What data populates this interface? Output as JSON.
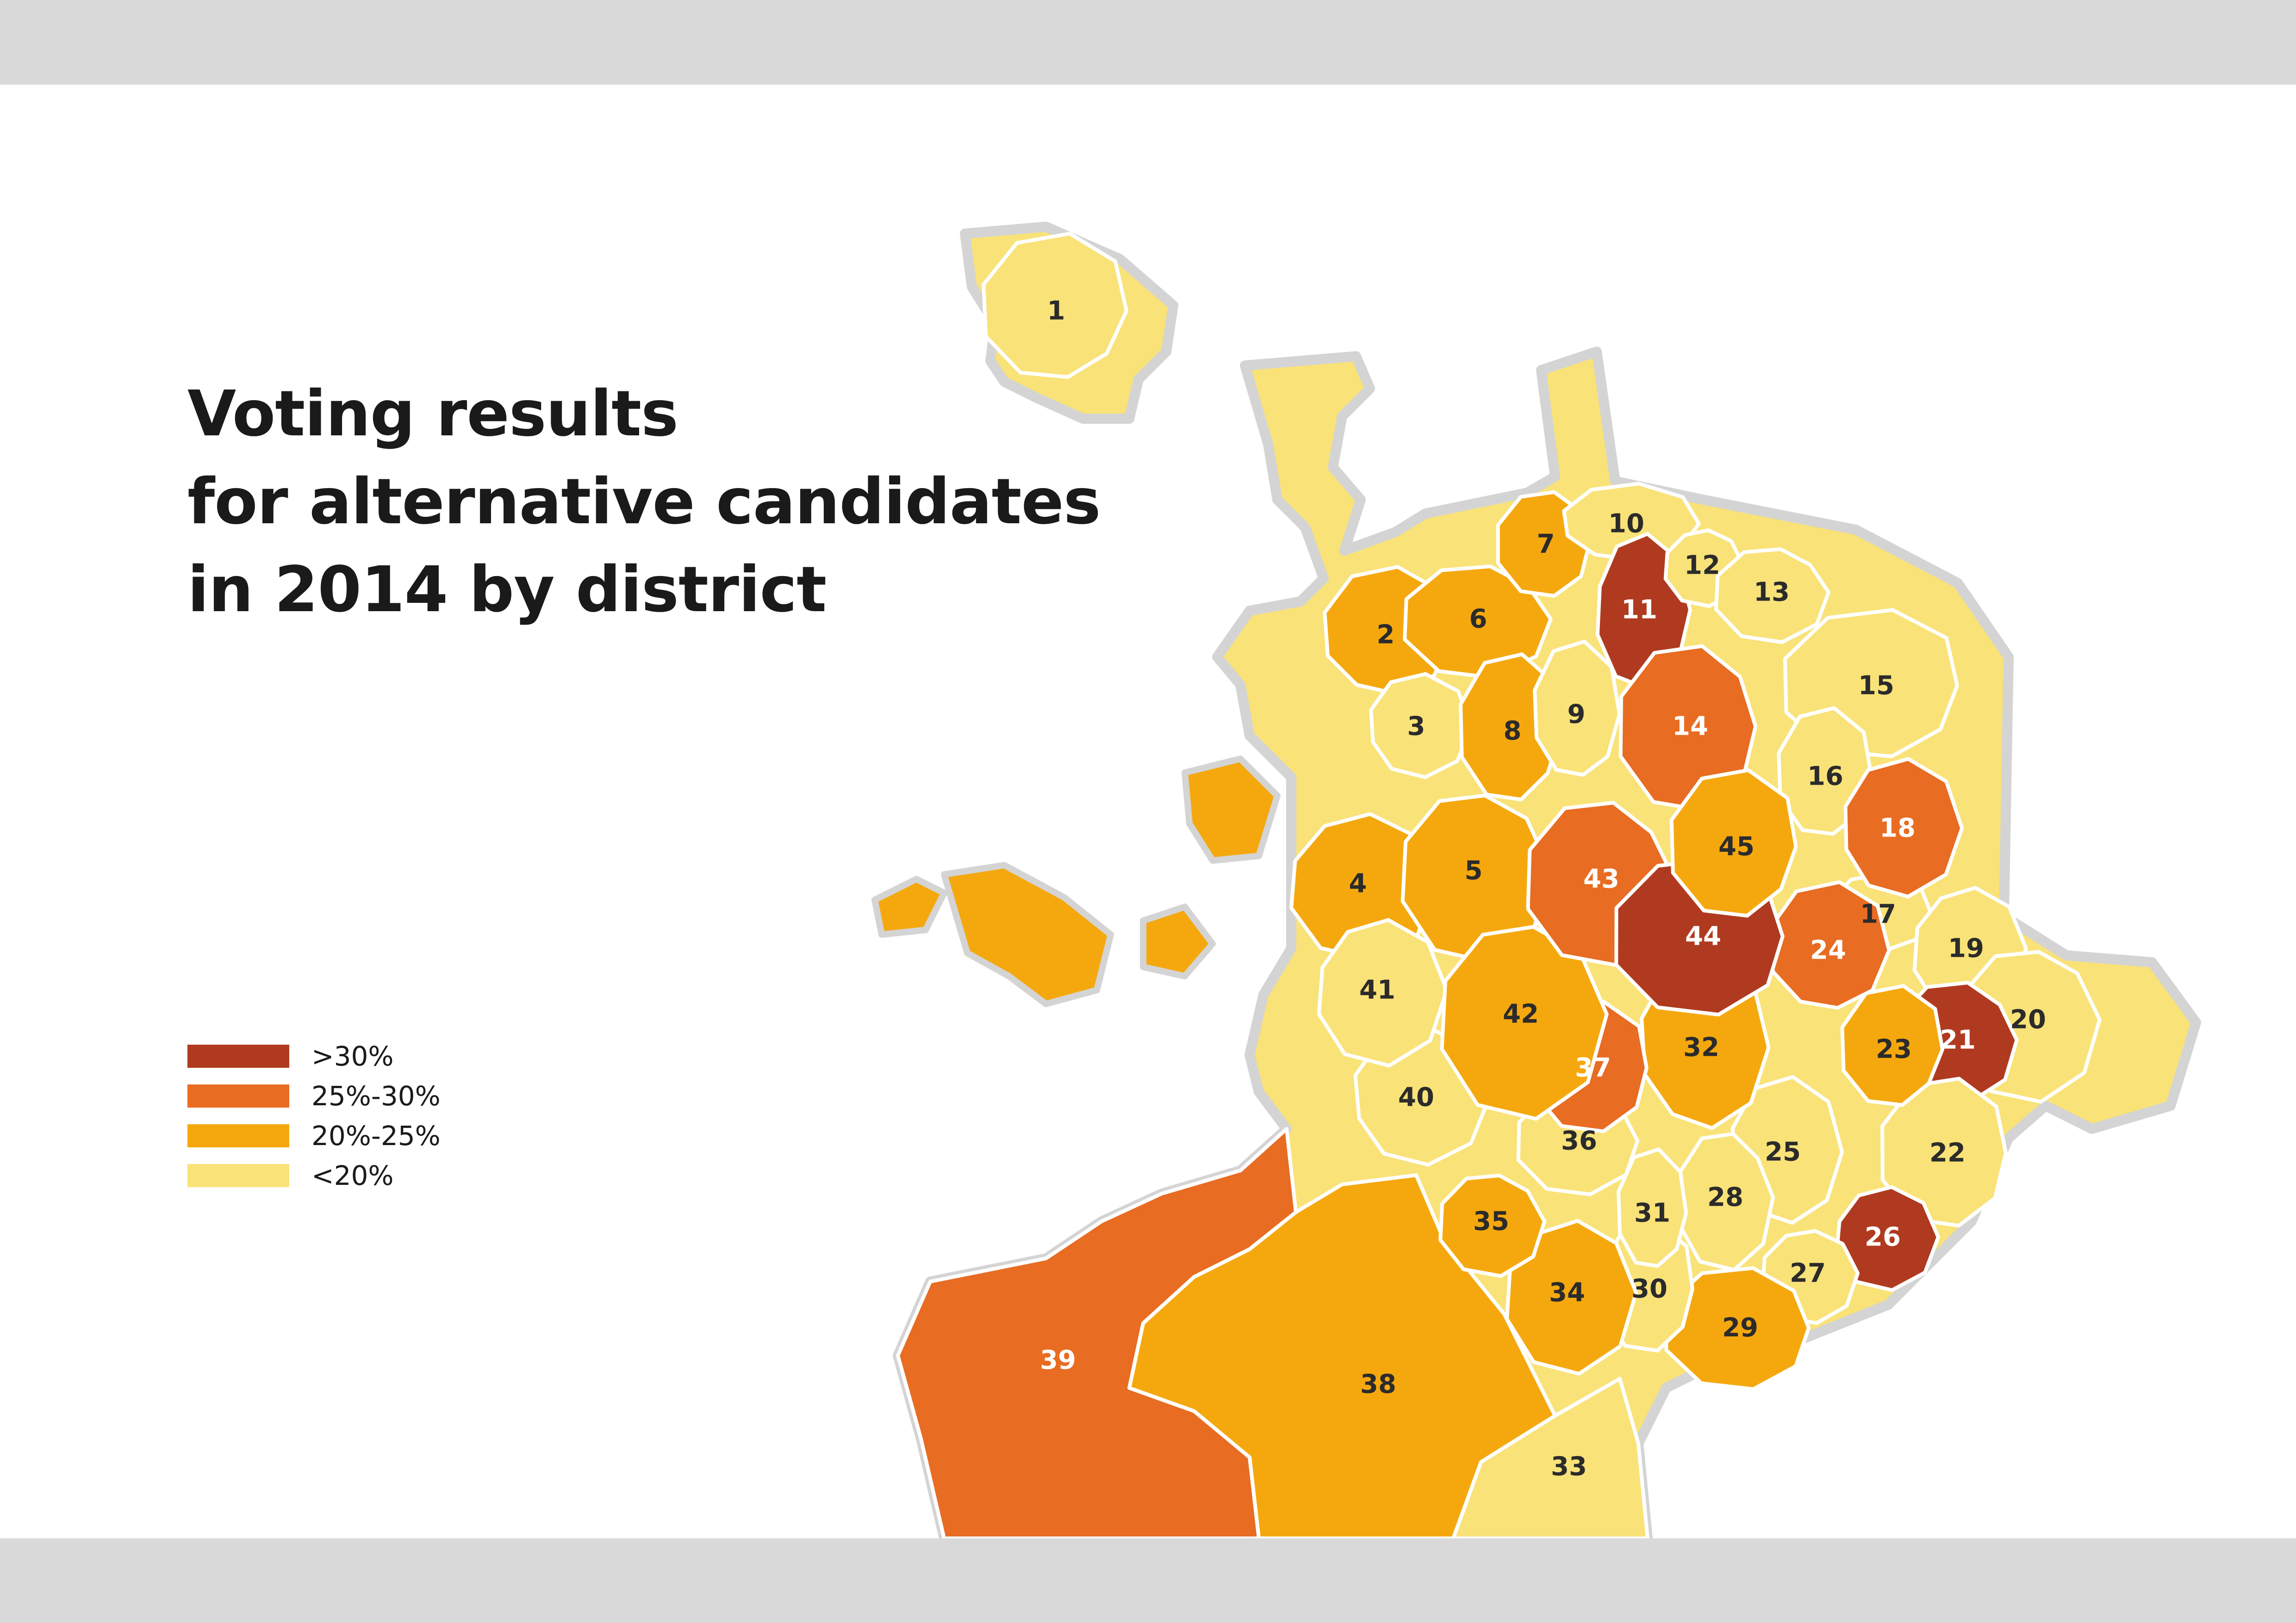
{
  "title_lines": [
    "Voting results",
    "for alternative candidates",
    "in 2014 by district"
  ],
  "legend": [
    {
      "label": ">30%",
      "color": "#b03a1f"
    },
    {
      "label": "25%-30%",
      "color": "#e86c22"
    },
    {
      "label": "20%-25%",
      "color": "#f5a80e"
    },
    {
      "label": "<20%",
      "color": "#f9e278"
    }
  ],
  "colors": {
    "dark_red": "#b03a1f",
    "orange": "#e86c22",
    "amber": "#f5a80e",
    "pale_yellow": "#f9e278",
    "outline": "#d4d4d4",
    "band": "#d9d9d9"
  },
  "districts": [
    {
      "id": "1",
      "bracket": "<20%"
    },
    {
      "id": "2",
      "bracket": "20%-25%"
    },
    {
      "id": "3",
      "bracket": "<20%"
    },
    {
      "id": "4",
      "bracket": "20%-25%"
    },
    {
      "id": "5",
      "bracket": "20%-25%"
    },
    {
      "id": "6",
      "bracket": "20%-25%"
    },
    {
      "id": "7",
      "bracket": "20%-25%"
    },
    {
      "id": "8",
      "bracket": "20%-25%"
    },
    {
      "id": "9",
      "bracket": "<20%"
    },
    {
      "id": "10",
      "bracket": "<20%"
    },
    {
      "id": "11",
      "bracket": ">30%"
    },
    {
      "id": "12",
      "bracket": "<20%"
    },
    {
      "id": "13",
      "bracket": "<20%"
    },
    {
      "id": "14",
      "bracket": "25%-30%"
    },
    {
      "id": "15",
      "bracket": "<20%"
    },
    {
      "id": "16",
      "bracket": "<20%"
    },
    {
      "id": "17",
      "bracket": "<20%"
    },
    {
      "id": "18",
      "bracket": "25%-30%"
    },
    {
      "id": "19",
      "bracket": "<20%"
    },
    {
      "id": "20",
      "bracket": "<20%"
    },
    {
      "id": "21",
      "bracket": ">30%"
    },
    {
      "id": "22",
      "bracket": "<20%"
    },
    {
      "id": "23",
      "bracket": "20%-25%"
    },
    {
      "id": "24",
      "bracket": "25%-30%"
    },
    {
      "id": "25",
      "bracket": "<20%"
    },
    {
      "id": "26",
      "bracket": ">30%"
    },
    {
      "id": "27",
      "bracket": "<20%"
    },
    {
      "id": "28",
      "bracket": "<20%"
    },
    {
      "id": "29",
      "bracket": "20%-25%"
    },
    {
      "id": "30",
      "bracket": "<20%"
    },
    {
      "id": "31",
      "bracket": "<20%"
    },
    {
      "id": "32",
      "bracket": "20%-25%"
    },
    {
      "id": "33",
      "bracket": "<20%"
    },
    {
      "id": "34",
      "bracket": "20%-25%"
    },
    {
      "id": "35",
      "bracket": "20%-25%"
    },
    {
      "id": "36",
      "bracket": "<20%"
    },
    {
      "id": "37",
      "bracket": "25%-30%"
    },
    {
      "id": "38",
      "bracket": "20%-25%"
    },
    {
      "id": "39",
      "bracket": "25%-30%"
    },
    {
      "id": "40",
      "bracket": "<20%"
    },
    {
      "id": "41",
      "bracket": "<20%"
    },
    {
      "id": "42",
      "bracket": "20%-25%"
    },
    {
      "id": "43",
      "bracket": "25%-30%"
    },
    {
      "id": "44",
      "bracket": ">30%"
    },
    {
      "id": "45",
      "bracket": "20%-25%"
    }
  ]
}
